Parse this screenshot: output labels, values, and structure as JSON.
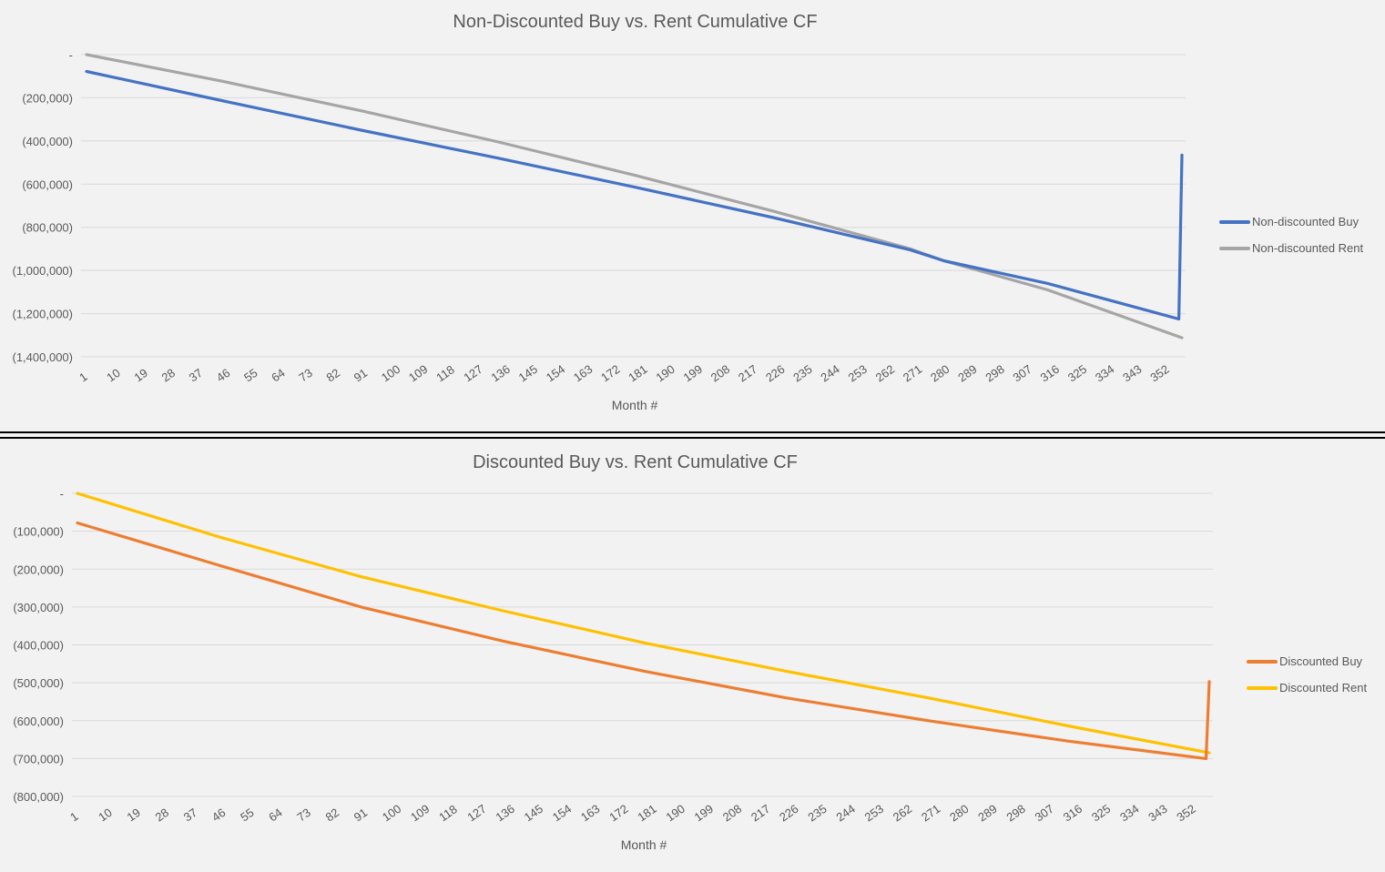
{
  "chart_data": [
    {
      "type": "line",
      "title": "Non-Discounted Buy vs. Rent Cumulative CF",
      "xlabel": "Month #",
      "ylabel": "",
      "x_range": [
        1,
        360
      ],
      "x_tick_labels": [
        "1",
        "10",
        "19",
        "28",
        "37",
        "46",
        "55",
        "64",
        "73",
        "82",
        "91",
        "100",
        "109",
        "118",
        "127",
        "136",
        "145",
        "154",
        "163",
        "172",
        "181",
        "190",
        "199",
        "208",
        "217",
        "226",
        "235",
        "244",
        "253",
        "262",
        "271",
        "280",
        "289",
        "298",
        "307",
        "316",
        "325",
        "334",
        "343",
        "352"
      ],
      "y_tick_labels": [
        "-",
        "(200,000)",
        "(400,000)",
        "(600,000)",
        "(800,000)",
        "(1,000,000)",
        "(1,200,000)",
        "(1,400,000)"
      ],
      "y_ticks": [
        0,
        -200000,
        -400000,
        -600000,
        -800000,
        -1000000,
        -1200000,
        -1400000
      ],
      "ylim": [
        -1400000,
        0
      ],
      "grid": true,
      "legend_position": "right",
      "series": [
        {
          "name": "Non-discounted Buy",
          "color": "#4472c4",
          "points": [
            [
              1,
              -78000
            ],
            [
              46,
              -215000
            ],
            [
              91,
              -350000
            ],
            [
              136,
              -480000
            ],
            [
              181,
              -615000
            ],
            [
              226,
              -755000
            ],
            [
              271,
              -905000
            ],
            [
              282,
              -955000
            ],
            [
              316,
              -1060000
            ],
            [
              359,
              -1225000
            ],
            [
              360,
              -465000
            ]
          ]
        },
        {
          "name": "Non-discounted Rent",
          "color": "#a5a5a5",
          "points": [
            [
              1,
              0
            ],
            [
              46,
              -125000
            ],
            [
              91,
              -260000
            ],
            [
              136,
              -405000
            ],
            [
              181,
              -560000
            ],
            [
              226,
              -725000
            ],
            [
              271,
              -900000
            ],
            [
              282,
              -955000
            ],
            [
              316,
              -1090000
            ],
            [
              360,
              -1312000
            ]
          ]
        }
      ]
    },
    {
      "type": "line",
      "title": "Discounted Buy vs. Rent Cumulative CF",
      "xlabel": "Month #",
      "ylabel": "",
      "x_range": [
        1,
        360
      ],
      "x_tick_labels": [
        "1",
        "10",
        "19",
        "28",
        "37",
        "46",
        "55",
        "64",
        "73",
        "82",
        "91",
        "100",
        "109",
        "118",
        "127",
        "136",
        "145",
        "154",
        "163",
        "172",
        "181",
        "190",
        "199",
        "208",
        "217",
        "226",
        "235",
        "244",
        "253",
        "262",
        "271",
        "280",
        "289",
        "298",
        "307",
        "316",
        "325",
        "334",
        "343",
        "352"
      ],
      "y_tick_labels": [
        "-",
        "(100,000)",
        "(200,000)",
        "(300,000)",
        "(400,000)",
        "(500,000)",
        "(600,000)",
        "(700,000)",
        "(800,000)"
      ],
      "y_ticks": [
        0,
        -100000,
        -200000,
        -300000,
        -400000,
        -500000,
        -600000,
        -700000,
        -800000
      ],
      "ylim": [
        -800000,
        0
      ],
      "grid": true,
      "legend_position": "right",
      "series": [
        {
          "name": "Discounted Buy",
          "color": "#ed7d31",
          "points": [
            [
              1,
              -78000
            ],
            [
              46,
              -190000
            ],
            [
              91,
              -300000
            ],
            [
              136,
              -390000
            ],
            [
              181,
              -470000
            ],
            [
              226,
              -540000
            ],
            [
              271,
              -600000
            ],
            [
              316,
              -655000
            ],
            [
              359,
              -700000
            ],
            [
              360,
              -497000
            ]
          ]
        },
        {
          "name": "Discounted Rent",
          "color": "#ffc000",
          "points": [
            [
              1,
              0
            ],
            [
              46,
              -115000
            ],
            [
              91,
              -220000
            ],
            [
              136,
              -310000
            ],
            [
              181,
              -395000
            ],
            [
              226,
              -470000
            ],
            [
              271,
              -540000
            ],
            [
              316,
              -615000
            ],
            [
              360,
              -685000
            ]
          ]
        }
      ]
    }
  ]
}
